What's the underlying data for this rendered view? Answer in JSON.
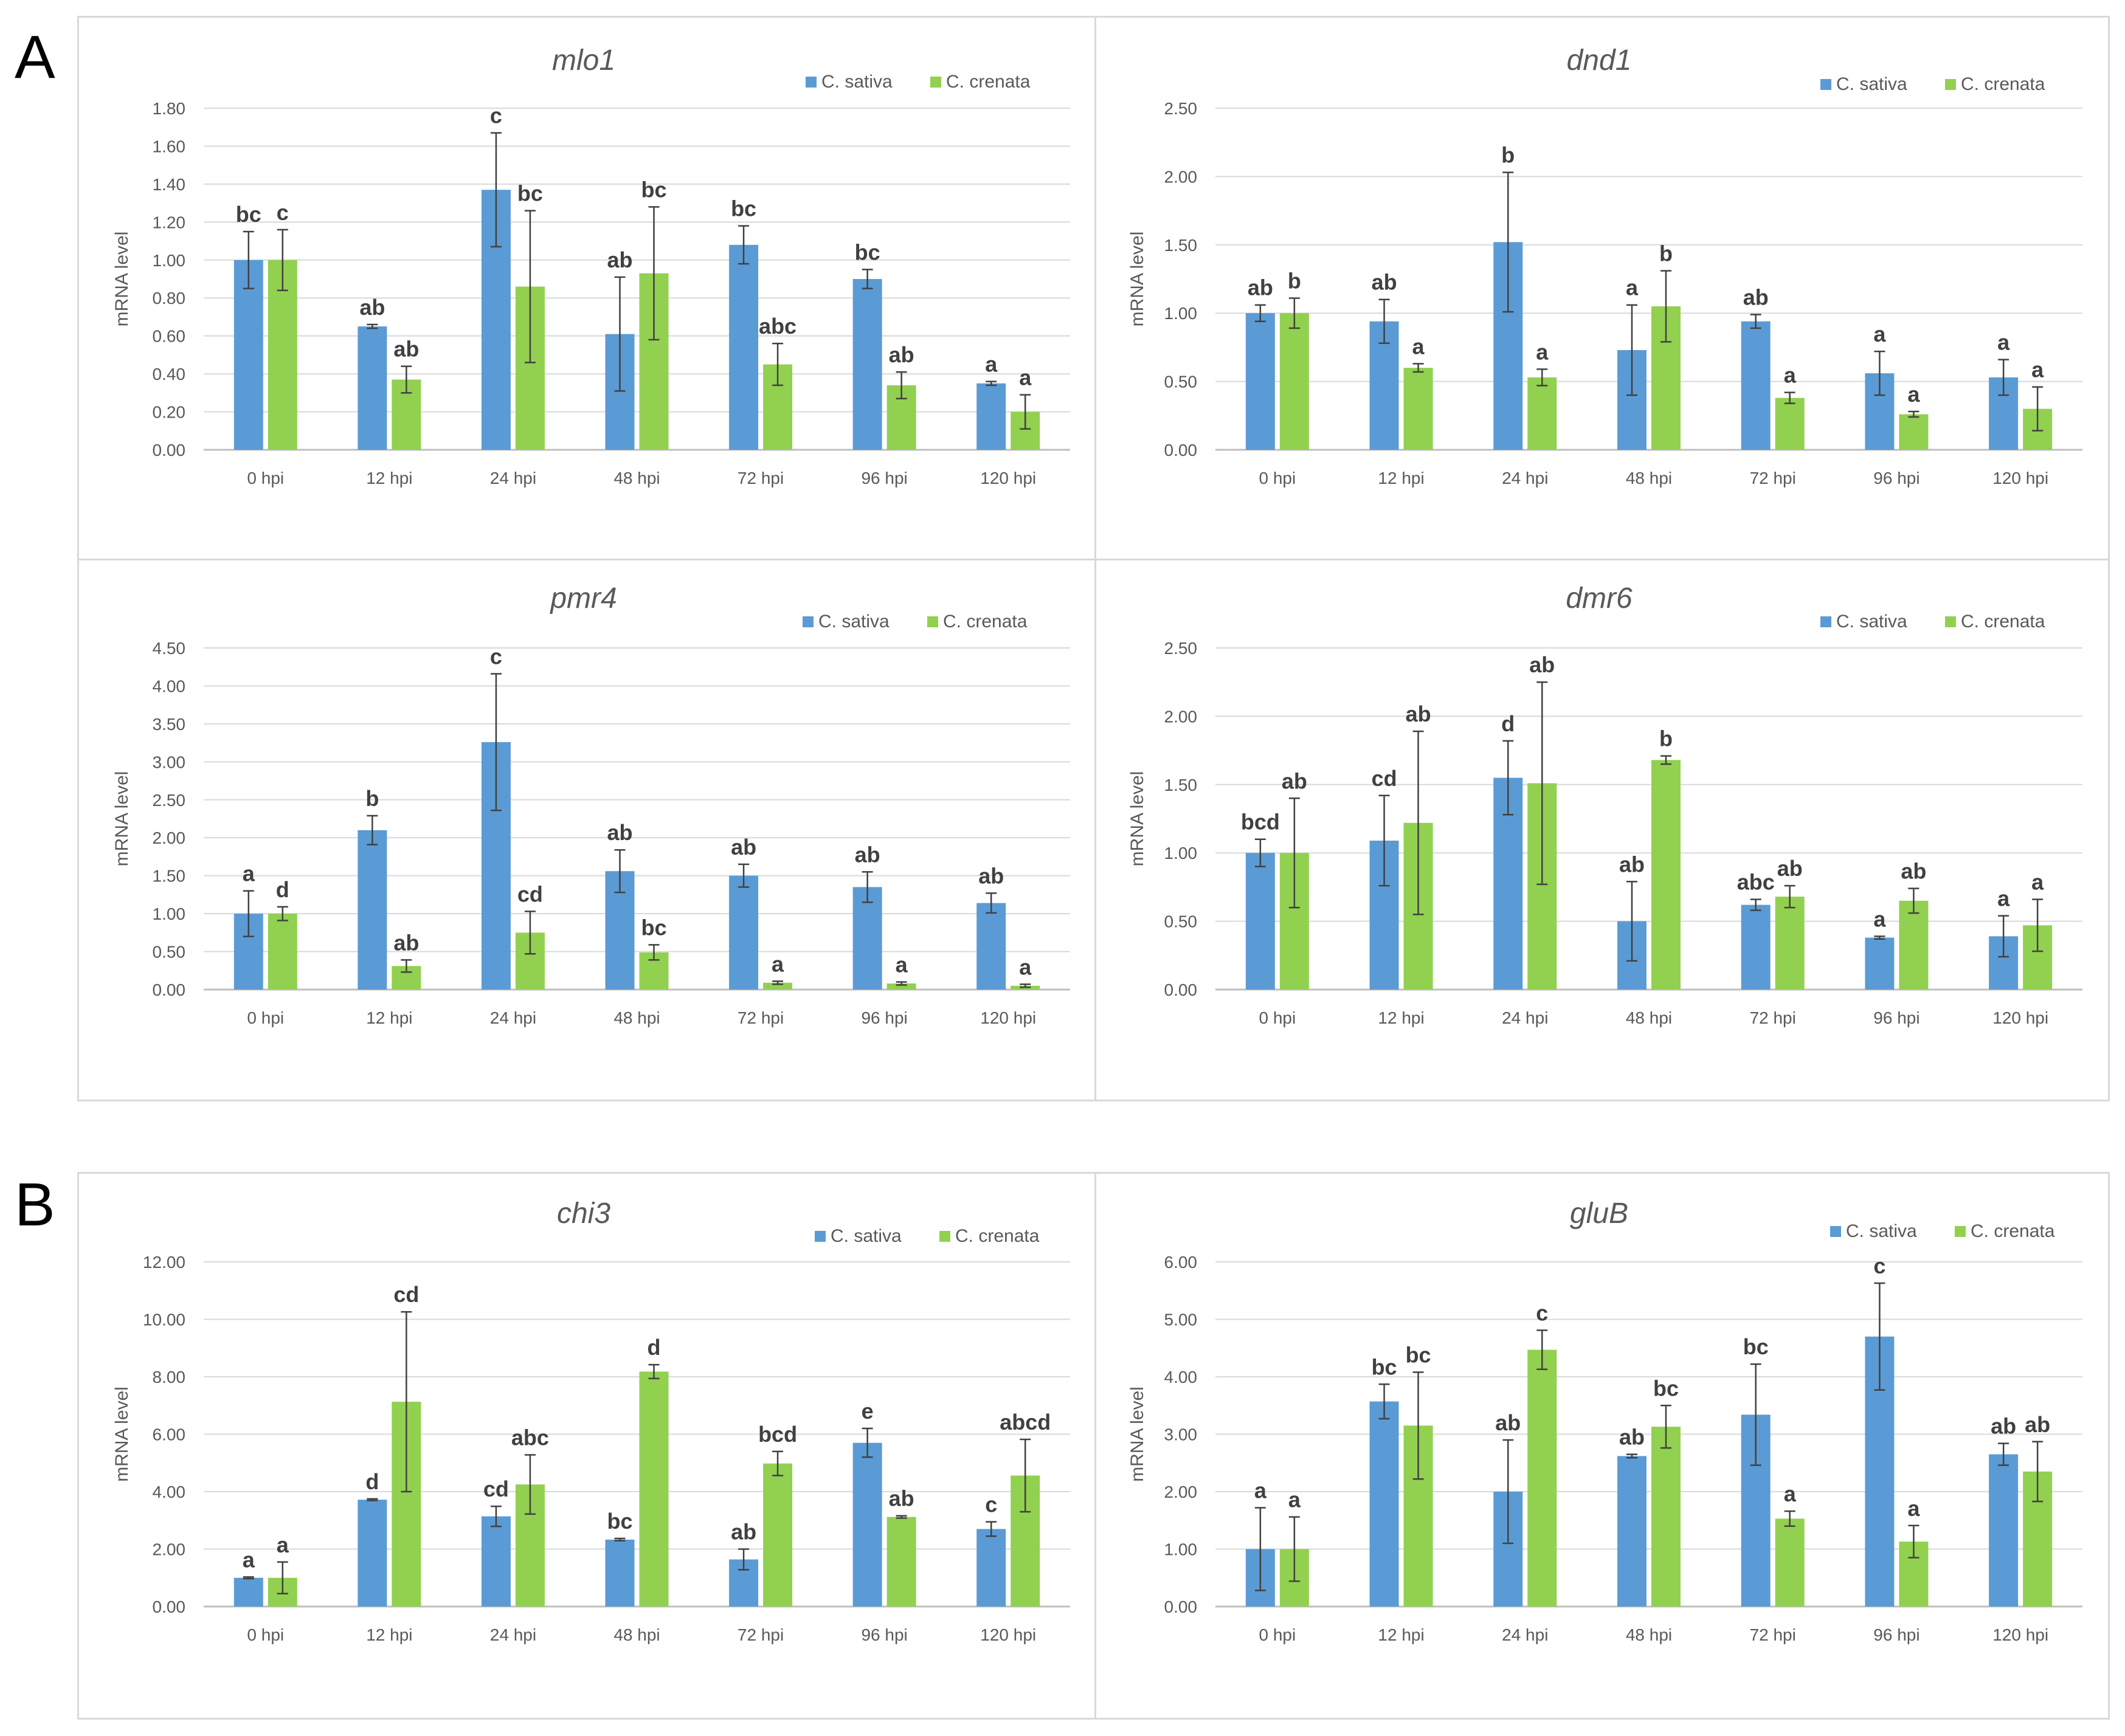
{
  "figure": {
    "section_a": "A",
    "section_b": "B",
    "colors": {
      "sativa": "#5b9bd5",
      "crenata": "#92d050"
    }
  },
  "chart_data": [
    {
      "type": "bar",
      "title": "mlo1",
      "ylabel": "mRNA level",
      "xlabel": "",
      "categories": [
        "0 hpi",
        "12 hpi",
        "24 hpi",
        "48 hpi",
        "72 hpi",
        "96 hpi",
        "120 hpi"
      ],
      "ylim": [
        0,
        1.8
      ],
      "yticks": [
        "0.00",
        "0.20",
        "0.40",
        "0.60",
        "0.80",
        "1.00",
        "1.20",
        "1.40",
        "1.60",
        "1.80"
      ],
      "series": [
        {
          "name": "C. sativa",
          "values": [
            1.0,
            0.65,
            1.37,
            0.61,
            1.08,
            0.9,
            0.35
          ],
          "errors": [
            0.15,
            0.01,
            0.3,
            0.3,
            0.1,
            0.05,
            0.01
          ],
          "letters": [
            "bc",
            "ab",
            "c",
            "ab",
            "bc",
            "bc",
            "a"
          ]
        },
        {
          "name": "C. crenata",
          "values": [
            1.0,
            0.37,
            0.86,
            0.93,
            0.45,
            0.34,
            0.2
          ],
          "errors": [
            0.16,
            0.07,
            0.4,
            0.35,
            0.11,
            0.07,
            0.09
          ],
          "letters": [
            "c",
            "ab",
            "bc",
            "bc",
            "abc",
            "ab",
            "a"
          ]
        }
      ]
    },
    {
      "type": "bar",
      "title": "dnd1",
      "ylabel": "mRNA level",
      "xlabel": "",
      "categories": [
        "0 hpi",
        "12 hpi",
        "24 hpi",
        "48 hpi",
        "72 hpi",
        "96 hpi",
        "120 hpi"
      ],
      "ylim": [
        0,
        2.5
      ],
      "yticks": [
        "0.00",
        "0.50",
        "1.00",
        "1.50",
        "2.00",
        "2.50"
      ],
      "series": [
        {
          "name": "C. sativa",
          "values": [
            1.0,
            0.94,
            1.52,
            0.73,
            0.94,
            0.56,
            0.53
          ],
          "errors": [
            0.06,
            0.16,
            0.51,
            0.33,
            0.05,
            0.16,
            0.13
          ],
          "letters": [
            "ab",
            "ab",
            "b",
            "a",
            "ab",
            "a",
            "a"
          ]
        },
        {
          "name": "C. crenata",
          "values": [
            1.0,
            0.6,
            0.53,
            1.05,
            0.38,
            0.26,
            0.3
          ],
          "errors": [
            0.11,
            0.03,
            0.06,
            0.26,
            0.04,
            0.02,
            0.16
          ],
          "letters": [
            "b",
            "a",
            "a",
            "b",
            "a",
            "a",
            "a"
          ]
        }
      ]
    },
    {
      "type": "bar",
      "title": "pmr4",
      "ylabel": "mRNA level",
      "xlabel": "",
      "categories": [
        "0 hpi",
        "12 hpi",
        "24 hpi",
        "48 hpi",
        "72 hpi",
        "96 hpi",
        "120 hpi"
      ],
      "ylim": [
        0,
        4.5
      ],
      "yticks": [
        "0.00",
        "0.50",
        "1.00",
        "1.50",
        "2.00",
        "2.50",
        "3.00",
        "3.50",
        "4.00",
        "4.50"
      ],
      "series": [
        {
          "name": "C. sativa",
          "values": [
            1.0,
            2.1,
            3.26,
            1.56,
            1.5,
            1.35,
            1.14
          ],
          "errors": [
            0.3,
            0.19,
            0.9,
            0.28,
            0.15,
            0.2,
            0.13
          ],
          "letters": [
            "a",
            "b",
            "c",
            "ab",
            "ab",
            "ab",
            "ab"
          ]
        },
        {
          "name": "C. crenata",
          "values": [
            1.0,
            0.31,
            0.75,
            0.49,
            0.09,
            0.08,
            0.05
          ],
          "errors": [
            0.09,
            0.08,
            0.28,
            0.1,
            0.02,
            0.02,
            0.02
          ],
          "letters": [
            "d",
            "ab",
            "cd",
            "bc",
            "a",
            "a",
            "a"
          ]
        }
      ]
    },
    {
      "type": "bar",
      "title": "dmr6",
      "ylabel": "mRNA level",
      "xlabel": "",
      "categories": [
        "0 hpi",
        "12 hpi",
        "24 hpi",
        "48 hpi",
        "72 hpi",
        "96 hpi",
        "120 hpi"
      ],
      "ylim": [
        0,
        2.5
      ],
      "yticks": [
        "0.00",
        "0.50",
        "1.00",
        "1.50",
        "2.00",
        "2.50"
      ],
      "series": [
        {
          "name": "C. sativa",
          "values": [
            1.0,
            1.09,
            1.55,
            0.5,
            0.62,
            0.38,
            0.39
          ],
          "errors": [
            0.1,
            0.33,
            0.27,
            0.29,
            0.04,
            0.01,
            0.15
          ],
          "letters": [
            "bcd",
            "cd",
            "d",
            "ab",
            "abc",
            "a",
            "a"
          ]
        },
        {
          "name": "C. crenata",
          "values": [
            1.0,
            1.22,
            1.51,
            1.68,
            0.68,
            0.65,
            0.47
          ],
          "errors": [
            0.4,
            0.67,
            0.74,
            0.03,
            0.08,
            0.09,
            0.19
          ],
          "letters": [
            "ab",
            "ab",
            "ab",
            "b",
            "ab",
            "ab",
            "a"
          ]
        }
      ]
    },
    {
      "type": "bar",
      "title": "chi3",
      "ylabel": "mRNA level",
      "xlabel": "",
      "categories": [
        "0 hpi",
        "12 hpi",
        "24 hpi",
        "48 hpi",
        "72 hpi",
        "96 hpi",
        "120 hpi"
      ],
      "ylim": [
        0,
        12
      ],
      "yticks": [
        "0.00",
        "2.00",
        "4.00",
        "6.00",
        "8.00",
        "10.00",
        "12.00"
      ],
      "series": [
        {
          "name": "C. sativa",
          "values": [
            1.0,
            3.72,
            3.14,
            2.33,
            1.64,
            5.7,
            2.7
          ],
          "errors": [
            0.03,
            0.03,
            0.35,
            0.04,
            0.36,
            0.5,
            0.25
          ],
          "letters": [
            "a",
            "d",
            "cd",
            "bc",
            "ab",
            "e",
            "c"
          ]
        },
        {
          "name": "C. crenata",
          "values": [
            1.0,
            7.13,
            4.25,
            8.18,
            4.98,
            3.12,
            4.56
          ],
          "errors": [
            0.55,
            3.13,
            1.03,
            0.24,
            0.42,
            0.04,
            1.26
          ],
          "letters": [
            "a",
            "cd",
            "abc",
            "d",
            "bcd",
            "ab",
            "abcd"
          ]
        }
      ]
    },
    {
      "type": "bar",
      "title": "gluB",
      "ylabel": "mRNA level",
      "xlabel": "",
      "categories": [
        "0 hpi",
        "12 hpi",
        "24 hpi",
        "48 hpi",
        "72 hpi",
        "96 hpi",
        "120 hpi"
      ],
      "ylim": [
        0,
        6
      ],
      "yticks": [
        "0.00",
        "1.00",
        "2.00",
        "3.00",
        "4.00",
        "5.00",
        "6.00"
      ],
      "series": [
        {
          "name": "C. sativa",
          "values": [
            1.0,
            3.57,
            2.0,
            2.62,
            3.34,
            4.7,
            2.65
          ],
          "errors": [
            0.72,
            0.3,
            0.9,
            0.03,
            0.88,
            0.93,
            0.19
          ],
          "letters": [
            "a",
            "bc",
            "ab",
            "ab",
            "bc",
            "c",
            "ab"
          ]
        },
        {
          "name": "C. crenata",
          "values": [
            1.0,
            3.15,
            4.47,
            3.13,
            1.53,
            1.13,
            2.35
          ],
          "errors": [
            0.56,
            0.93,
            0.34,
            0.37,
            0.13,
            0.28,
            0.52
          ],
          "letters": [
            "a",
            "bc",
            "c",
            "bc",
            "a",
            "a",
            "ab"
          ]
        }
      ]
    }
  ]
}
